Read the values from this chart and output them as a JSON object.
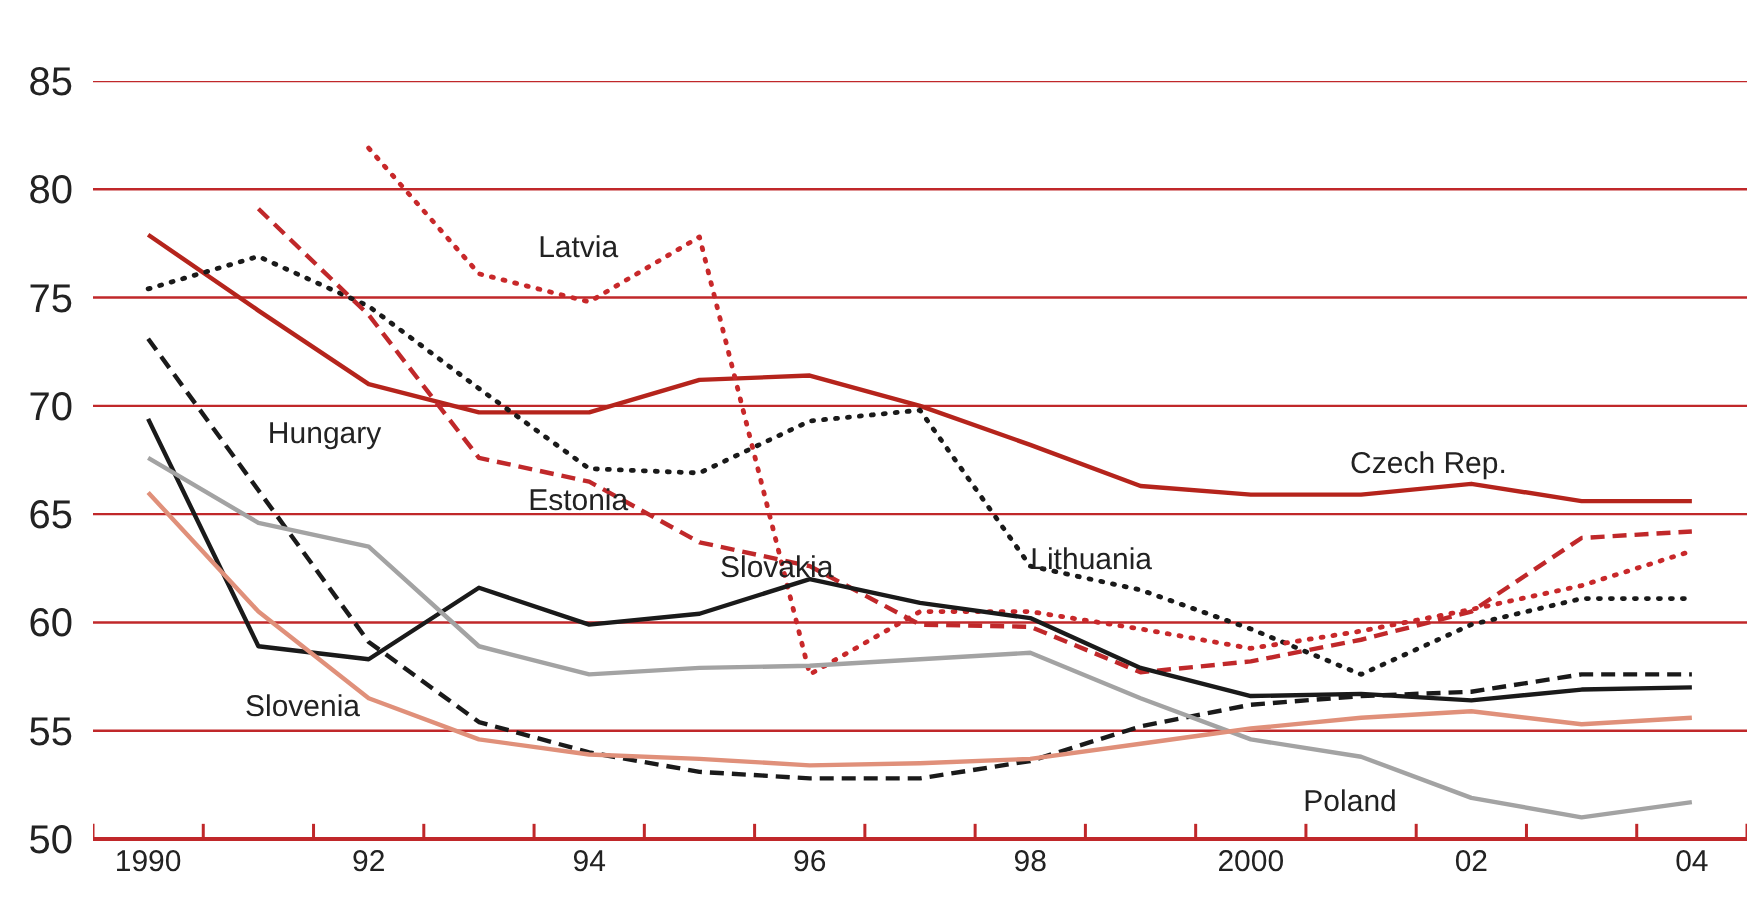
{
  "chart_data": {
    "type": "line",
    "x": [
      1990,
      1991,
      1992,
      1993,
      1994,
      1995,
      1996,
      1997,
      1998,
      1999,
      2000,
      2001,
      2002,
      2003,
      2004
    ],
    "series": [
      {
        "name": "Czech Rep.",
        "color": "#b5241c",
        "line_style": "solid",
        "values": [
          77.9,
          74.4,
          71.0,
          69.7,
          69.7,
          71.2,
          71.4,
          70.0,
          68.2,
          66.3,
          65.9,
          65.9,
          66.4,
          65.6,
          65.6
        ]
      },
      {
        "name": "Lithuania",
        "color": "#1a1a1a",
        "line_style": "dotted",
        "values": [
          75.4,
          76.9,
          74.6,
          70.8,
          67.1,
          66.9,
          69.3,
          69.8,
          62.6,
          61.5,
          59.7,
          57.6,
          59.9,
          61.1,
          61.1
        ]
      },
      {
        "name": "Latvia",
        "color": "#c8282a",
        "line_style": "dotted",
        "values": [
          null,
          null,
          81.9,
          76.1,
          74.8,
          77.8,
          57.6,
          60.5,
          60.5,
          59.7,
          58.8,
          59.6,
          60.6,
          61.7,
          63.3
        ]
      },
      {
        "name": "Estonia",
        "color": "#c0282a",
        "line_style": "dashed",
        "values": [
          null,
          79.1,
          74.2,
          67.6,
          66.5,
          63.7,
          62.6,
          59.9,
          59.8,
          57.7,
          58.2,
          59.2,
          60.5,
          63.9,
          64.2
        ]
      },
      {
        "name": "Slovakia",
        "color": "#1a1a1a",
        "line_style": "solid",
        "values": [
          69.4,
          58.9,
          58.3,
          61.6,
          59.9,
          60.4,
          62.0,
          60.9,
          60.2,
          57.9,
          56.6,
          56.7,
          56.4,
          56.9,
          57.0
        ]
      },
      {
        "name": "Hungary",
        "color": "#1a1a1a",
        "line_style": "dashed",
        "values": [
          73.1,
          66.1,
          59.1,
          55.4,
          54.0,
          53.1,
          52.8,
          52.8,
          53.6,
          55.2,
          56.2,
          56.6,
          56.8,
          57.6,
          57.6
        ]
      },
      {
        "name": "Poland",
        "color": "#a3a3a3",
        "line_style": "solid",
        "values": [
          67.6,
          64.6,
          63.5,
          58.9,
          57.6,
          57.9,
          58.0,
          58.3,
          58.6,
          56.5,
          54.6,
          53.8,
          51.9,
          51.0,
          51.7
        ]
      },
      {
        "name": "Slovenia",
        "color": "#e0907a",
        "line_style": "solid",
        "values": [
          66.0,
          60.5,
          56.5,
          54.6,
          53.9,
          53.7,
          53.4,
          53.5,
          53.7,
          54.4,
          55.1,
          55.6,
          55.9,
          55.3,
          55.6
        ]
      }
    ],
    "xlim": [
      1989.5,
      2004.5
    ],
    "xticks": [
      {
        "value": 1990,
        "label": "1990"
      },
      {
        "value": 1992,
        "label": "92"
      },
      {
        "value": 1994,
        "label": "94"
      },
      {
        "value": 1996,
        "label": "96"
      },
      {
        "value": 1998,
        "label": "98"
      },
      {
        "value": 2000,
        "label": "2000"
      },
      {
        "value": 2002,
        "label": "02"
      },
      {
        "value": 2004,
        "label": "04"
      },
      {
        "value": 1989.5,
        "label": null
      },
      {
        "value": 1990.5,
        "label": null
      },
      {
        "value": 1991.5,
        "label": null
      },
      {
        "value": 1992.5,
        "label": null
      },
      {
        "value": 1993.5,
        "label": null
      },
      {
        "value": 1994.5,
        "label": null
      },
      {
        "value": 1995.5,
        "label": null
      },
      {
        "value": 1996.5,
        "label": null
      },
      {
        "value": 1997.5,
        "label": null
      },
      {
        "value": 1998.5,
        "label": null
      },
      {
        "value": 1999.5,
        "label": null
      },
      {
        "value": 2000.5,
        "label": null
      },
      {
        "value": 2001.5,
        "label": null
      },
      {
        "value": 2002.5,
        "label": null
      },
      {
        "value": 2003.5,
        "label": null
      },
      {
        "value": 2004.5,
        "label": null
      }
    ],
    "ylim": [
      50,
      85
    ],
    "yticks": [
      50,
      55,
      60,
      65,
      70,
      75,
      80,
      85
    ],
    "grid": "y"
  }
}
